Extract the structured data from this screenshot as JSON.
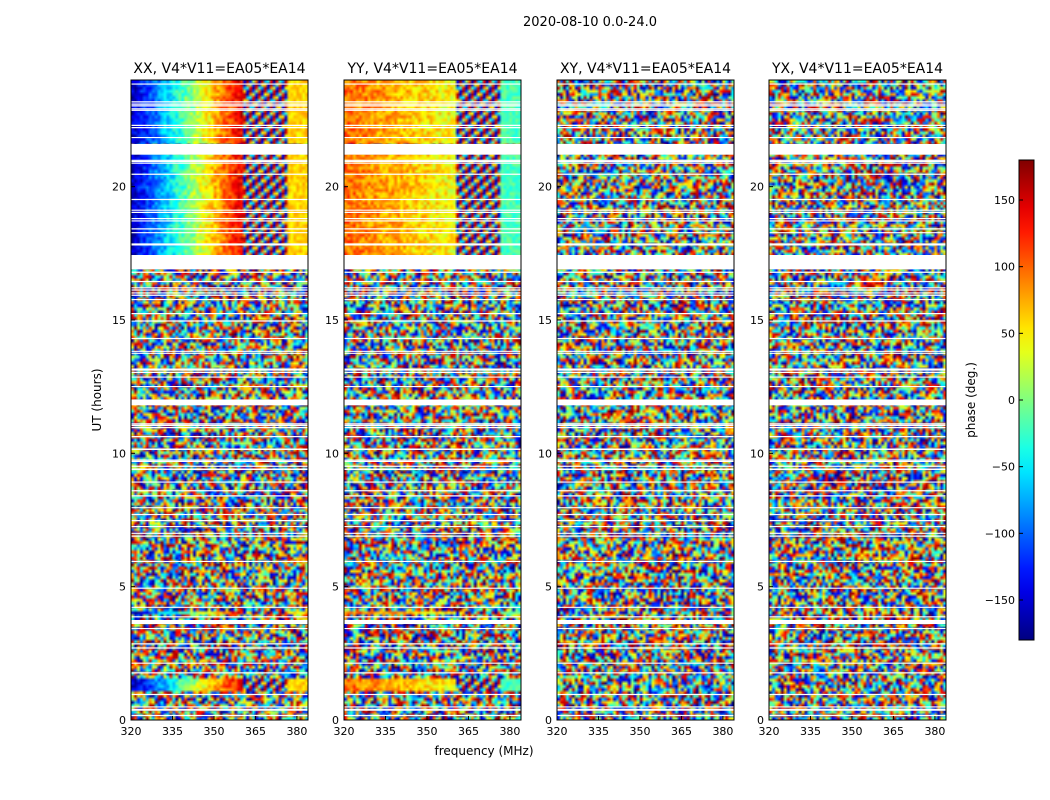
{
  "chart_data": {
    "type": "heatmap",
    "title": "2020-08-10 0.0-24.0",
    "xlabel": "frequency (MHz)",
    "ylabel": "UT (hours)",
    "xlim": [
      320,
      384
    ],
    "ylim": [
      0,
      24
    ],
    "x_ticks": [
      320,
      335,
      350,
      365,
      380
    ],
    "y_ticks": [
      0,
      5,
      10,
      15,
      20
    ],
    "colorbar": {
      "label": "phase (deg.)",
      "range": [
        -180,
        180
      ],
      "ticks": [
        -150,
        -100,
        -50,
        0,
        50,
        100,
        150
      ],
      "colormap": "jet"
    },
    "panels": [
      {
        "title": "XX, V4*V11=EA05*EA14",
        "coherent_gradient": [
          -160,
          150
        ],
        "edge_phase": 60
      },
      {
        "title": "YY, V4*V11=EA05*EA14",
        "coherent_gradient": [
          100,
          40
        ],
        "edge_phase": -20
      },
      {
        "title": "XY, V4*V11=EA05*EA14",
        "coherent_gradient": null,
        "edge_phase": null
      },
      {
        "title": "YX, V4*V11=EA05*EA14",
        "coherent_gradient": null,
        "edge_phase": null
      }
    ],
    "coherent_ut_ranges": [
      [
        17.0,
        21.2
      ],
      [
        21.6,
        24.0
      ],
      [
        1.1,
        1.6
      ],
      [
        3.9,
        4.1
      ]
    ],
    "flagged_ut_ranges": [
      [
        21.2,
        21.6
      ],
      [
        16.9,
        17.4
      ],
      [
        11.8,
        12.0
      ],
      [
        3.6,
        3.75
      ]
    ]
  }
}
